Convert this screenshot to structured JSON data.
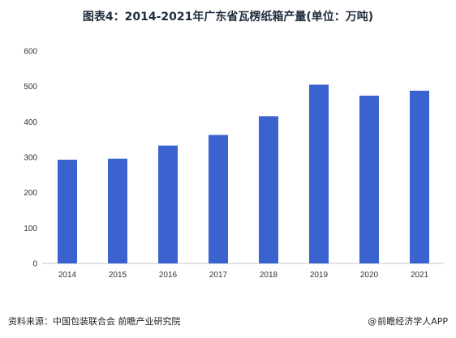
{
  "title": "图表4：2014-2021年广东省瓦楞纸箱产量(单位：万吨)",
  "footer": {
    "source": "资料来源：中国包装联合会 前瞻产业研究院",
    "brand_symbol": "@",
    "brand": "前瞻经济学人APP"
  },
  "chart_data": {
    "type": "bar",
    "title": "图表4：2014-2021年广东省瓦楞纸箱产量(单位：万吨)",
    "xlabel": "",
    "ylabel": "",
    "categories": [
      "2014",
      "2015",
      "2016",
      "2017",
      "2018",
      "2019",
      "2020",
      "2021"
    ],
    "values": [
      293,
      296,
      333,
      363,
      416,
      505,
      474,
      488
    ],
    "ylim": [
      0,
      600
    ],
    "yticks": [
      0,
      100,
      200,
      300,
      400,
      500,
      600
    ],
    "grid": false,
    "legend": "none",
    "bar_color": "#3a63cf"
  }
}
